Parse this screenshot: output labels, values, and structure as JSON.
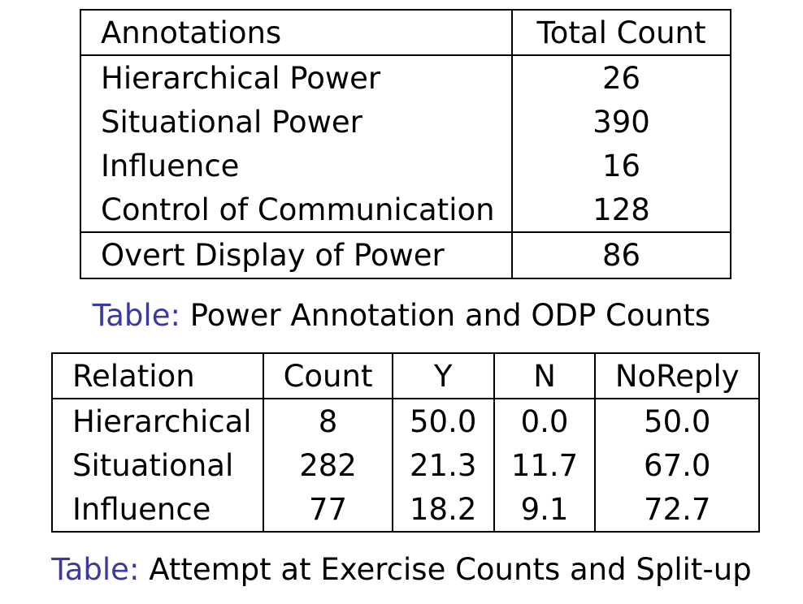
{
  "table1": {
    "headers": [
      "Annotations",
      "Total Count"
    ],
    "rows": [
      [
        "Hierarchical Power",
        "26"
      ],
      [
        "Situational Power",
        "390"
      ],
      [
        "Influence",
        "16"
      ],
      [
        "Control of Communication",
        "128"
      ]
    ],
    "footer_row": [
      "Overt Display of Power",
      "86"
    ],
    "caption_prefix": "Table:",
    "caption_text": "Power Annotation and ODP Counts"
  },
  "table2": {
    "headers": [
      "Relation",
      "Count",
      "Y",
      "N",
      "NoReply"
    ],
    "rows": [
      [
        "Hierarchical",
        "8",
        "50.0",
        "0.0",
        "50.0"
      ],
      [
        "Situational",
        "282",
        "21.3",
        "11.7",
        "67.0"
      ],
      [
        "Influence",
        "77",
        "18.2",
        "9.1",
        "72.7"
      ]
    ],
    "caption_prefix": "Table:",
    "caption_text": "Attempt at Exercise Counts and Split-up"
  },
  "colors": {
    "caption_prefix": "#3a3a9c",
    "text": "#000000",
    "border": "#000000"
  }
}
